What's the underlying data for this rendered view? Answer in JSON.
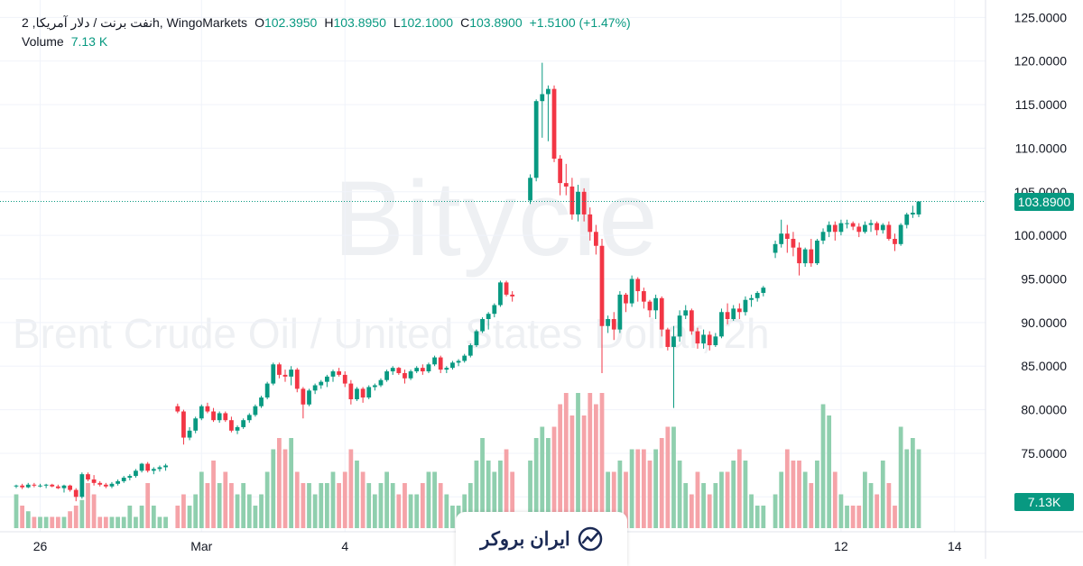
{
  "legend": {
    "symbol": "نفت برنت / دلار آمریکا, 2h, WingoMarkets",
    "open_label": "O",
    "open": "102.3950",
    "high_label": "H",
    "high": "103.8950",
    "low_label": "L",
    "low": "102.1000",
    "close_label": "C",
    "close": "103.8900",
    "change": "+1.5100 (+1.47%)",
    "volume_label": "Volume",
    "volume": "7.13 K"
  },
  "watermark": {
    "brand": "Bitycle",
    "symbol": "Brent Crude Oil / United States Dollar, 2h"
  },
  "price_tag": "103.8900",
  "volume_tag": "7.13K",
  "brand_badge": {
    "name": "ایران بروکر",
    "icon": "chart-trend-icon"
  },
  "colors": {
    "up": "#089981",
    "down": "#f23645",
    "vol_up": "#8fcfae",
    "vol_down": "#f5a3a8",
    "grid": "#f0f3fa",
    "axis_text": "#131722"
  },
  "chart_data": {
    "type": "candlestick",
    "title": "نفت برنت / دلار آمریکا, 2h, WingoMarkets",
    "y_axis": {
      "ticks": [
        "70.0000",
        "75.0000",
        "80.0000",
        "85.0000",
        "90.0000",
        "95.0000",
        "100.0000",
        "105.0000",
        "110.0000",
        "115.0000",
        "120.0000",
        "125.0000"
      ],
      "ylim": [
        66,
        127
      ]
    },
    "x_axis": {
      "ticks": [
        "26",
        "Mar",
        "4",
        "12",
        "14"
      ]
    },
    "last_price": 103.89,
    "grid": true,
    "candles": [
      [
        71.2,
        71.4,
        71.0,
        71.3,
        3
      ],
      [
        71.3,
        71.5,
        70.9,
        71.1,
        2
      ],
      [
        71.1,
        71.6,
        71.0,
        71.4,
        1.5
      ],
      [
        71.4,
        71.6,
        71.1,
        71.3,
        1
      ],
      [
        71.3,
        71.5,
        71.1,
        71.3,
        1
      ],
      [
        71.3,
        71.5,
        71.0,
        71.4,
        1
      ],
      [
        71.4,
        71.5,
        71.1,
        71.2,
        1
      ],
      [
        71.2,
        71.4,
        70.9,
        71.0,
        1
      ],
      [
        71.0,
        71.4,
        70.5,
        71.3,
        1
      ],
      [
        71.3,
        71.4,
        70.6,
        70.8,
        1.5
      ],
      [
        70.8,
        71.0,
        69.5,
        70.0,
        2
      ],
      [
        70.0,
        72.8,
        69.8,
        72.6,
        2.5
      ],
      [
        72.6,
        72.8,
        71.8,
        72.0,
        4
      ],
      [
        72.0,
        72.5,
        71.3,
        71.6,
        3
      ],
      [
        71.6,
        71.8,
        71.2,
        71.4,
        1
      ],
      [
        71.4,
        71.6,
        71.0,
        71.2,
        1
      ],
      [
        71.2,
        71.7,
        71.0,
        71.5,
        1
      ],
      [
        71.5,
        72.0,
        71.3,
        71.8,
        1
      ],
      [
        71.8,
        72.4,
        71.6,
        72.2,
        1
      ],
      [
        72.2,
        72.6,
        71.9,
        72.4,
        2
      ],
      [
        72.4,
        73.2,
        72.2,
        73.0,
        1
      ],
      [
        73.0,
        73.9,
        72.8,
        73.8,
        2
      ],
      [
        73.8,
        74.0,
        72.8,
        73.0,
        4
      ],
      [
        73.0,
        73.4,
        72.6,
        73.2,
        2
      ],
      [
        73.2,
        73.6,
        72.9,
        73.4,
        1
      ],
      [
        73.4,
        73.8,
        73.0,
        73.6,
        1
      ],
      [
        null,
        null,
        null,
        null,
        null
      ],
      [
        80.4,
        80.7,
        79.6,
        79.8,
        2
      ],
      [
        79.8,
        80.0,
        76.0,
        76.8,
        3
      ],
      [
        76.8,
        78.0,
        76.5,
        77.6,
        2
      ],
      [
        77.6,
        79.2,
        77.3,
        79.0,
        3
      ],
      [
        79.0,
        80.6,
        78.8,
        80.4,
        5
      ],
      [
        80.4,
        80.8,
        79.6,
        79.8,
        4
      ],
      [
        79.8,
        80.2,
        78.6,
        78.8,
        6
      ],
      [
        78.8,
        79.8,
        78.5,
        79.6,
        4
      ],
      [
        79.6,
        79.8,
        78.6,
        78.8,
        5
      ],
      [
        78.8,
        79.2,
        77.4,
        77.6,
        4
      ],
      [
        77.6,
        78.2,
        77.2,
        78.0,
        3
      ],
      [
        78.0,
        79.0,
        77.8,
        78.8,
        4
      ],
      [
        78.8,
        79.6,
        78.5,
        79.4,
        3
      ],
      [
        79.4,
        80.6,
        79.2,
        80.4,
        2
      ],
      [
        80.4,
        81.6,
        80.2,
        81.4,
        3
      ],
      [
        81.4,
        83.2,
        81.2,
        83.0,
        5
      ],
      [
        83.0,
        85.4,
        82.8,
        85.2,
        7
      ],
      [
        85.2,
        85.4,
        83.6,
        84.0,
        8
      ],
      [
        84.0,
        84.6,
        83.2,
        83.8,
        7
      ],
      [
        83.8,
        85.0,
        82.8,
        84.6,
        8
      ],
      [
        84.6,
        84.8,
        82.0,
        82.4,
        5
      ],
      [
        82.4,
        82.6,
        79.0,
        80.6,
        4
      ],
      [
        80.6,
        82.4,
        80.4,
        82.2,
        4
      ],
      [
        82.2,
        83.0,
        81.8,
        82.8,
        3
      ],
      [
        82.8,
        83.4,
        82.4,
        83.2,
        4
      ],
      [
        83.2,
        84.0,
        82.6,
        83.8,
        4
      ],
      [
        83.8,
        84.6,
        83.2,
        84.4,
        5
      ],
      [
        84.4,
        84.8,
        83.8,
        84.0,
        4
      ],
      [
        84.0,
        84.4,
        82.6,
        83.0,
        5
      ],
      [
        83.0,
        83.4,
        80.6,
        81.2,
        7
      ],
      [
        81.2,
        82.6,
        81.0,
        82.4,
        6
      ],
      [
        82.4,
        82.6,
        80.8,
        81.4,
        5
      ],
      [
        81.4,
        82.8,
        81.2,
        82.6,
        4
      ],
      [
        82.6,
        83.0,
        82.2,
        82.8,
        3
      ],
      [
        82.8,
        83.6,
        82.6,
        83.4,
        4
      ],
      [
        83.4,
        84.6,
        83.2,
        84.4,
        5
      ],
      [
        84.4,
        85.0,
        84.0,
        84.8,
        4
      ],
      [
        84.8,
        84.9,
        84.0,
        84.2,
        3
      ],
      [
        84.2,
        84.6,
        83.0,
        83.6,
        4
      ],
      [
        83.6,
        84.6,
        83.4,
        84.4,
        3
      ],
      [
        84.4,
        85.0,
        84.2,
        84.8,
        3
      ],
      [
        84.8,
        85.2,
        84.0,
        84.4,
        4
      ],
      [
        84.4,
        85.4,
        84.2,
        85.2,
        5
      ],
      [
        85.2,
        86.2,
        85.0,
        86.0,
        5
      ],
      [
        86.0,
        86.2,
        84.2,
        84.6,
        4
      ],
      [
        84.6,
        85.0,
        84.2,
        84.8,
        3
      ],
      [
        84.8,
        85.6,
        84.6,
        85.4,
        2
      ],
      [
        85.4,
        85.8,
        85.0,
        85.6,
        2
      ],
      [
        85.6,
        86.4,
        85.4,
        86.2,
        3
      ],
      [
        86.2,
        87.6,
        86.0,
        87.4,
        4
      ],
      [
        87.4,
        89.2,
        87.2,
        89.0,
        6
      ],
      [
        89.0,
        90.6,
        88.8,
        90.4,
        8
      ],
      [
        90.4,
        91.2,
        89.2,
        91.0,
        6
      ],
      [
        91.0,
        92.2,
        90.6,
        92.0,
        5
      ],
      [
        92.0,
        94.8,
        91.8,
        94.6,
        6
      ],
      [
        94.6,
        94.8,
        93.0,
        93.2,
        7
      ],
      [
        93.2,
        93.6,
        92.4,
        93.0,
        5
      ],
      [
        null,
        null,
        null,
        null,
        null
      ],
      [
        null,
        null,
        null,
        null,
        null
      ],
      [
        104.0,
        107.0,
        103.6,
        106.6,
        6
      ],
      [
        106.6,
        115.6,
        106.2,
        115.4,
        8
      ],
      [
        115.4,
        119.8,
        111.2,
        116.2,
        9
      ],
      [
        116.2,
        117.2,
        110.8,
        116.8,
        8
      ],
      [
        116.8,
        117.2,
        108.4,
        108.8,
        9
      ],
      [
        108.8,
        109.2,
        104.6,
        106.0,
        11
      ],
      [
        106.0,
        108.2,
        104.6,
        105.6,
        12
      ],
      [
        105.6,
        106.6,
        101.8,
        102.4,
        10
      ],
      [
        102.4,
        105.8,
        101.6,
        105.0,
        12
      ],
      [
        105.0,
        105.4,
        101.6,
        102.4,
        10
      ],
      [
        102.4,
        103.2,
        99.4,
        100.4,
        12
      ],
      [
        100.4,
        101.2,
        97.8,
        98.8,
        11
      ],
      [
        98.8,
        99.6,
        84.2,
        89.6,
        12
      ],
      [
        89.6,
        90.8,
        88.8,
        90.4,
        5
      ],
      [
        90.4,
        91.2,
        88.0,
        89.2,
        5
      ],
      [
        89.2,
        93.6,
        88.8,
        93.2,
        6
      ],
      [
        93.2,
        93.4,
        91.2,
        92.2,
        5
      ],
      [
        92.2,
        95.4,
        91.8,
        95.0,
        7
      ],
      [
        95.0,
        95.2,
        92.4,
        93.6,
        7
      ],
      [
        93.6,
        94.0,
        91.6,
        92.4,
        7
      ],
      [
        92.4,
        92.6,
        90.6,
        91.4,
        6
      ],
      [
        91.4,
        93.2,
        90.4,
        92.8,
        7
      ],
      [
        92.8,
        93.0,
        88.4,
        89.2,
        8
      ],
      [
        89.2,
        89.4,
        86.8,
        87.2,
        9
      ],
      [
        87.2,
        89.6,
        80.2,
        88.4,
        9
      ],
      [
        88.4,
        91.4,
        87.8,
        90.8,
        6
      ],
      [
        90.8,
        92.0,
        90.4,
        91.4,
        4
      ],
      [
        91.4,
        91.6,
        88.6,
        89.0,
        3
      ],
      [
        89.0,
        89.4,
        87.0,
        87.6,
        5
      ],
      [
        87.6,
        89.2,
        87.0,
        88.6,
        4
      ],
      [
        88.6,
        89.0,
        86.8,
        87.4,
        3
      ],
      [
        87.4,
        88.8,
        87.2,
        88.4,
        4
      ],
      [
        88.4,
        91.6,
        88.2,
        91.2,
        5
      ],
      [
        91.2,
        92.2,
        89.8,
        90.4,
        5
      ],
      [
        90.4,
        92.0,
        90.2,
        91.6,
        6
      ],
      [
        91.6,
        92.2,
        90.4,
        91.2,
        7
      ],
      [
        91.2,
        93.0,
        90.8,
        92.6,
        6
      ],
      [
        92.6,
        93.2,
        91.8,
        92.8,
        3
      ],
      [
        92.8,
        93.6,
        92.4,
        93.4,
        2
      ],
      [
        93.4,
        94.2,
        93.0,
        94.0,
        2
      ],
      [
        null,
        null,
        null,
        null,
        null
      ],
      [
        98.0,
        99.4,
        97.4,
        99.0,
        3
      ],
      [
        99.0,
        101.8,
        98.6,
        100.2,
        5
      ],
      [
        100.2,
        101.2,
        98.0,
        99.6,
        7
      ],
      [
        99.6,
        100.4,
        97.6,
        98.6,
        6
      ],
      [
        98.6,
        99.2,
        95.4,
        96.8,
        6
      ],
      [
        96.8,
        98.6,
        96.4,
        98.4,
        5
      ],
      [
        98.4,
        99.6,
        96.4,
        96.8,
        4
      ],
      [
        96.8,
        99.6,
        96.6,
        99.4,
        6
      ],
      [
        99.4,
        100.8,
        99.0,
        100.4,
        11
      ],
      [
        100.4,
        101.6,
        99.8,
        101.2,
        10
      ],
      [
        101.2,
        101.6,
        99.4,
        100.4,
        5
      ],
      [
        100.4,
        101.8,
        100.0,
        101.4,
        3
      ],
      [
        101.4,
        101.8,
        100.8,
        101.4,
        2
      ],
      [
        101.4,
        101.6,
        100.6,
        101.0,
        2
      ],
      [
        101.0,
        101.4,
        99.8,
        100.4,
        2
      ],
      [
        100.4,
        101.6,
        100.2,
        101.2,
        5
      ],
      [
        101.2,
        101.8,
        100.4,
        101.4,
        4
      ],
      [
        101.4,
        101.6,
        100.0,
        100.6,
        3
      ],
      [
        100.6,
        101.4,
        100.2,
        101.2,
        6
      ],
      [
        101.2,
        101.6,
        99.4,
        99.6,
        4
      ],
      [
        99.6,
        100.2,
        98.2,
        99.0,
        2
      ],
      [
        99.0,
        101.4,
        98.8,
        101.2,
        9
      ],
      [
        101.2,
        102.6,
        100.8,
        102.4,
        7
      ],
      [
        102.4,
        103.4,
        102.0,
        102.6,
        8
      ],
      [
        102.4,
        103.9,
        102.1,
        103.89,
        7
      ]
    ]
  }
}
